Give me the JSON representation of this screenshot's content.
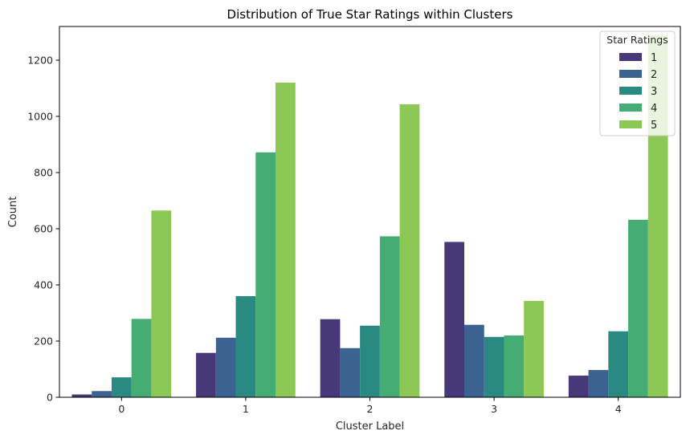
{
  "chart_data": {
    "type": "bar",
    "title": "Distribution of True Star Ratings within Clusters",
    "xlabel": "Cluster Label",
    "ylabel": "Count",
    "categories": [
      "0",
      "1",
      "2",
      "3",
      "4"
    ],
    "ylim": [
      0,
      1320
    ],
    "yticks": [
      0,
      200,
      400,
      600,
      800,
      1000,
      1200
    ],
    "grid": false,
    "legend": {
      "title": "Star Ratings",
      "placement": "top-right"
    },
    "series": [
      {
        "name": "1",
        "color": "#47387a",
        "values": [
          10,
          158,
          278,
          553,
          77
        ]
      },
      {
        "name": "2",
        "color": "#3b6290",
        "values": [
          22,
          212,
          175,
          258,
          97
        ]
      },
      {
        "name": "3",
        "color": "#2a8a82",
        "values": [
          71,
          360,
          255,
          215,
          235
        ]
      },
      {
        "name": "4",
        "color": "#45ad73",
        "values": [
          279,
          872,
          573,
          220,
          632
        ]
      },
      {
        "name": "5",
        "color": "#8dc755",
        "values": [
          665,
          1120,
          1043,
          343,
          1290
        ]
      }
    ]
  }
}
